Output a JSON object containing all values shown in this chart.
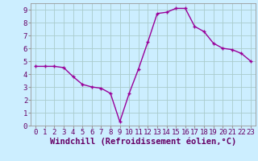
{
  "x": [
    0,
    1,
    2,
    3,
    4,
    5,
    6,
    7,
    8,
    9,
    10,
    11,
    12,
    13,
    14,
    15,
    16,
    17,
    18,
    19,
    20,
    21,
    22,
    23
  ],
  "y": [
    4.6,
    4.6,
    4.6,
    4.5,
    3.8,
    3.2,
    3.0,
    2.9,
    2.5,
    0.3,
    2.5,
    4.4,
    6.5,
    8.7,
    8.8,
    9.1,
    9.1,
    7.7,
    7.3,
    6.4,
    6.0,
    5.9,
    5.6,
    5.0
  ],
  "line_color": "#990099",
  "marker": "+",
  "marker_size": 3.5,
  "line_width": 1.0,
  "bg_color": "#cceeff",
  "grid_color": "#aacccc",
  "xlabel": "Windchill (Refroidissement éolien,°C)",
  "xlabel_fontsize": 7.5,
  "tick_fontsize": 6.5,
  "xlim": [
    -0.5,
    23.5
  ],
  "ylim": [
    0,
    9.5
  ],
  "yticks": [
    0,
    1,
    2,
    3,
    4,
    5,
    6,
    7,
    8,
    9
  ],
  "xticks": [
    0,
    1,
    2,
    3,
    4,
    5,
    6,
    7,
    8,
    9,
    10,
    11,
    12,
    13,
    14,
    15,
    16,
    17,
    18,
    19,
    20,
    21,
    22,
    23
  ],
  "label_color": "#660066"
}
